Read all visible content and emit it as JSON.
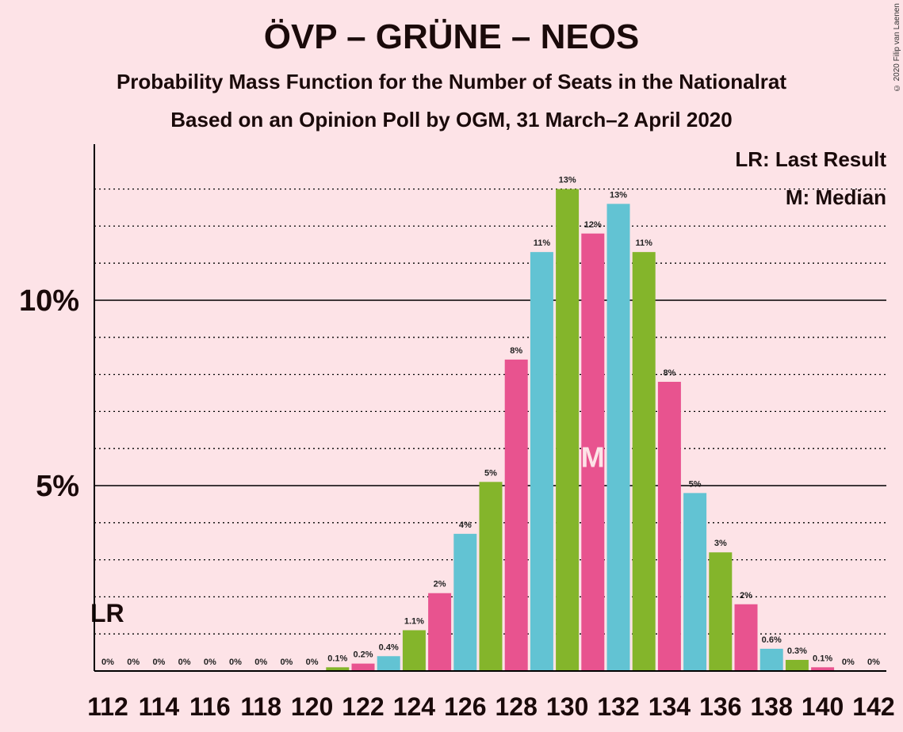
{
  "title": "ÖVP – GRÜNE – NEOS",
  "subtitle": "Probability Mass Function for the Number of Seats in the Nationalrat",
  "subtitle2": "Based on an Opinion Poll by OGM, 31 March–2 April 2020",
  "copyright": "© 2020 Filip van Laenen",
  "legend": {
    "lr": "LR: Last Result",
    "median": "M: Median"
  },
  "lr_marker": "LR",
  "median_marker": "M",
  "colors": {
    "pink": "#e8538f",
    "teal": "#62c3d3",
    "green": "#84b52b",
    "background": "#fde3e7"
  },
  "chart_data": {
    "type": "bar",
    "ylim": [
      0,
      14
    ],
    "y_ticks": [
      {
        "value": 5,
        "label": "5%"
      },
      {
        "value": 10,
        "label": "10%"
      }
    ],
    "x_tick_labels": [
      "112",
      "114",
      "116",
      "118",
      "120",
      "122",
      "124",
      "126",
      "128",
      "130",
      "132",
      "134",
      "136",
      "138",
      "140",
      "142"
    ],
    "last_result_seat": 112,
    "median_seat": 131,
    "grid": true,
    "bars": [
      {
        "seat": 112,
        "value": 0,
        "label": "0%",
        "color": "teal"
      },
      {
        "seat": 113,
        "value": 0,
        "label": "0%",
        "color": "green"
      },
      {
        "seat": 114,
        "value": 0,
        "label": "0%",
        "color": "pink"
      },
      {
        "seat": 115,
        "value": 0,
        "label": "0%",
        "color": "teal"
      },
      {
        "seat": 116,
        "value": 0,
        "label": "0%",
        "color": "green"
      },
      {
        "seat": 117,
        "value": 0,
        "label": "0%",
        "color": "pink"
      },
      {
        "seat": 118,
        "value": 0,
        "label": "0%",
        "color": "teal"
      },
      {
        "seat": 119,
        "value": 0,
        "label": "0%",
        "color": "green"
      },
      {
        "seat": 120,
        "value": 0,
        "label": "0%",
        "color": "pink"
      },
      {
        "seat": 121,
        "value": 0.1,
        "label": "0.1%",
        "color": "green"
      },
      {
        "seat": 122,
        "value": 0.2,
        "label": "0.2%",
        "color": "pink"
      },
      {
        "seat": 123,
        "value": 0.4,
        "label": "0.4%",
        "color": "teal"
      },
      {
        "seat": 124,
        "value": 1.1,
        "label": "1.1%",
        "color": "green"
      },
      {
        "seat": 125,
        "value": 2.1,
        "label": "2%",
        "color": "pink"
      },
      {
        "seat": 126,
        "value": 3.7,
        "label": "4%",
        "color": "teal"
      },
      {
        "seat": 127,
        "value": 5.1,
        "label": "5%",
        "color": "green"
      },
      {
        "seat": 128,
        "value": 8.4,
        "label": "8%",
        "color": "pink"
      },
      {
        "seat": 129,
        "value": 11.3,
        "label": "11%",
        "color": "teal"
      },
      {
        "seat": 130,
        "value": 13.0,
        "label": "13%",
        "color": "green"
      },
      {
        "seat": 131,
        "value": 11.8,
        "label": "12%",
        "color": "pink"
      },
      {
        "seat": 132,
        "value": 12.6,
        "label": "13%",
        "color": "teal"
      },
      {
        "seat": 133,
        "value": 11.3,
        "label": "11%",
        "color": "green"
      },
      {
        "seat": 134,
        "value": 7.8,
        "label": "8%",
        "color": "pink"
      },
      {
        "seat": 135,
        "value": 4.8,
        "label": "5%",
        "color": "teal"
      },
      {
        "seat": 136,
        "value": 3.2,
        "label": "3%",
        "color": "green"
      },
      {
        "seat": 137,
        "value": 1.8,
        "label": "2%",
        "color": "pink"
      },
      {
        "seat": 138,
        "value": 0.6,
        "label": "0.6%",
        "color": "teal"
      },
      {
        "seat": 139,
        "value": 0.3,
        "label": "0.3%",
        "color": "green"
      },
      {
        "seat": 140,
        "value": 0.1,
        "label": "0.1%",
        "color": "pink"
      },
      {
        "seat": 141,
        "value": 0,
        "label": "0%",
        "color": "teal"
      },
      {
        "seat": 142,
        "value": 0,
        "label": "0%",
        "color": "green"
      }
    ]
  }
}
